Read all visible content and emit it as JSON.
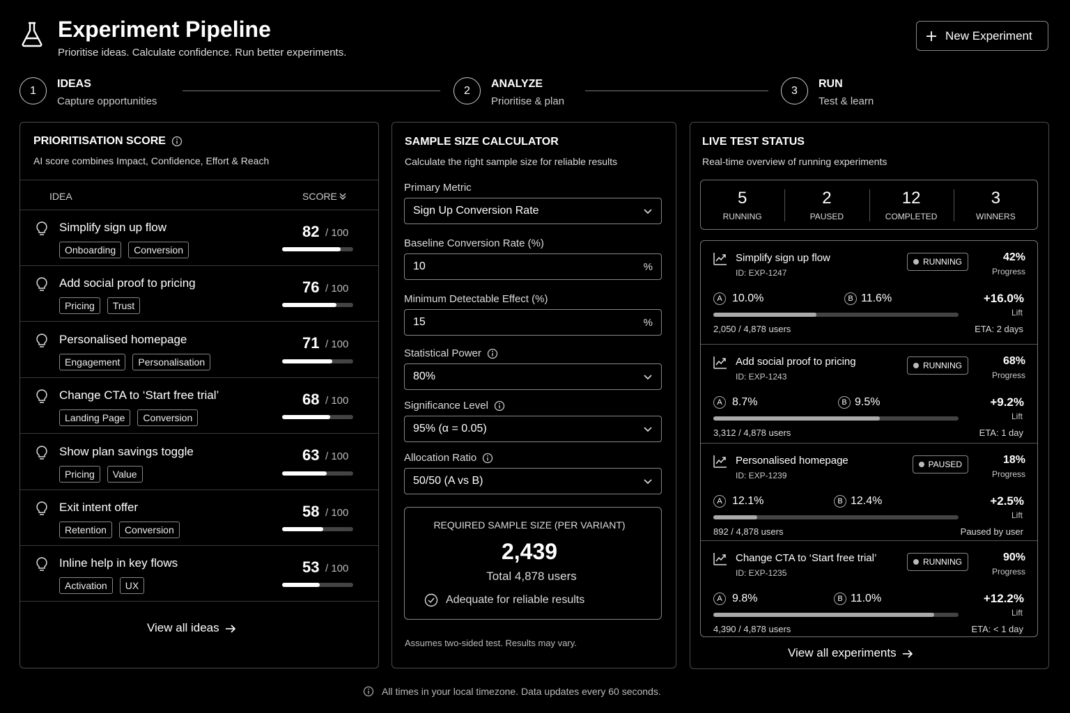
{
  "header": {
    "title": "Experiment Pipeline",
    "subtitle": "Prioritise ideas. Calculate confidence. Run better experiments.",
    "new_button": "New Experiment"
  },
  "steps": [
    {
      "number": 1,
      "title": "IDEAS",
      "subtitle": "Capture opportunities"
    },
    {
      "number": 2,
      "title": "ANALYZE",
      "subtitle": "Prioritise & plan"
    },
    {
      "number": 3,
      "title": "RUN",
      "subtitle": "Test & learn"
    }
  ],
  "prioritisation": {
    "title": "PRIORITISATION SCORE",
    "subtitle": "AI score combines Impact, Confidence, Effort & Reach",
    "col_idea": "IDEA",
    "col_score": "SCORE",
    "score_scale": {
      "value": 100,
      "label": "/ 100"
    },
    "ideas": [
      {
        "name": "Simplify sign up flow",
        "tags": [
          "Onboarding",
          "Conversion"
        ],
        "score": 82
      },
      {
        "name": "Add social proof to pricing",
        "tags": [
          "Pricing",
          "Trust"
        ],
        "score": 76
      },
      {
        "name": "Personalised homepage",
        "tags": [
          "Engagement",
          "Personalisation"
        ],
        "score": 71
      },
      {
        "name": "Change CTA to ‘Start free trial’",
        "tags": [
          "Landing Page",
          "Conversion"
        ],
        "score": 68
      },
      {
        "name": "Show plan savings toggle",
        "tags": [
          "Pricing",
          "Value"
        ],
        "score": 63
      },
      {
        "name": "Exit intent offer",
        "tags": [
          "Retention",
          "Conversion"
        ],
        "score": 58
      },
      {
        "name": "Inline help in key flows",
        "tags": [
          "Activation",
          "UX"
        ],
        "score": 53
      }
    ],
    "view_all": "View all ideas"
  },
  "calculator": {
    "title": "SAMPLE SIZE CALCULATOR",
    "subtitle": "Calculate the right sample size for reliable results",
    "fields": [
      {
        "label": "Primary Metric",
        "value": "Sign Up Conversion Rate",
        "kind": "select",
        "info": false
      },
      {
        "label": "Baseline Conversion Rate (%)",
        "value": "10",
        "suffix": "%",
        "kind": "input",
        "info": false
      },
      {
        "label": "Minimum Detectable Effect (%)",
        "value": "15",
        "suffix": "%",
        "kind": "input",
        "info": false
      },
      {
        "label": "Statistical Power",
        "value": "80%",
        "kind": "select",
        "info": true
      },
      {
        "label": "Significance Level",
        "value": "95% (α = 0.05)",
        "kind": "select",
        "info": true
      },
      {
        "label": "Allocation Ratio",
        "value": "50/50 (A vs B)",
        "kind": "select",
        "info": true
      }
    ],
    "result": {
      "heading": "REQUIRED SAMPLE SIZE (PER VARIANT)",
      "value": "2,439",
      "total": "Total 4,878 users",
      "status": "Adequate for reliable results"
    },
    "footnote": "Assumes two-sided test. Results may vary."
  },
  "live": {
    "title": "LIVE TEST STATUS",
    "subtitle": "Real-time overview of running experiments",
    "stats": [
      {
        "value": 5,
        "label": "RUNNING"
      },
      {
        "value": 2,
        "label": "PAUSED"
      },
      {
        "value": 12,
        "label": "COMPLETED"
      },
      {
        "value": 3,
        "label": "WINNERS"
      }
    ],
    "variant_a": "A",
    "variant_b": "B",
    "progress_caption": "Progress",
    "lift_caption": "Lift",
    "experiments": [
      {
        "name": "Simplify sign up flow",
        "id": "ID: EXP-1247",
        "status": "RUNNING",
        "progress": 42,
        "progress_label": "42%",
        "a": "10.0%",
        "b": "11.6%",
        "lift": "+16.0%",
        "users": "2,050 / 4,878 users",
        "note": "ETA: 2 days"
      },
      {
        "name": "Add social proof to pricing",
        "id": "ID: EXP-1243",
        "status": "RUNNING",
        "progress": 68,
        "progress_label": "68%",
        "a": "8.7%",
        "b": "9.5%",
        "lift": "+9.2%",
        "users": "3,312 / 4,878 users",
        "note": "ETA: 1 day"
      },
      {
        "name": "Personalised homepage",
        "id": "ID: EXP-1239",
        "status": "PAUSED",
        "progress": 18,
        "progress_label": "18%",
        "a": "12.1%",
        "b": "12.4%",
        "lift": "+2.5%",
        "users": "892 / 4,878 users",
        "note": "Paused by user"
      },
      {
        "name": "Change CTA to ‘Start free trial’",
        "id": "ID: EXP-1235",
        "status": "RUNNING",
        "progress": 90,
        "progress_label": "90%",
        "a": "9.8%",
        "b": "11.0%",
        "lift": "+12.2%",
        "users": "4,390 / 4,878 users",
        "note": "ETA: < 1 day"
      }
    ],
    "view_all": "View all experiments"
  },
  "footer": {
    "note": "All times in your local timezone. Data updates every 60 seconds."
  }
}
